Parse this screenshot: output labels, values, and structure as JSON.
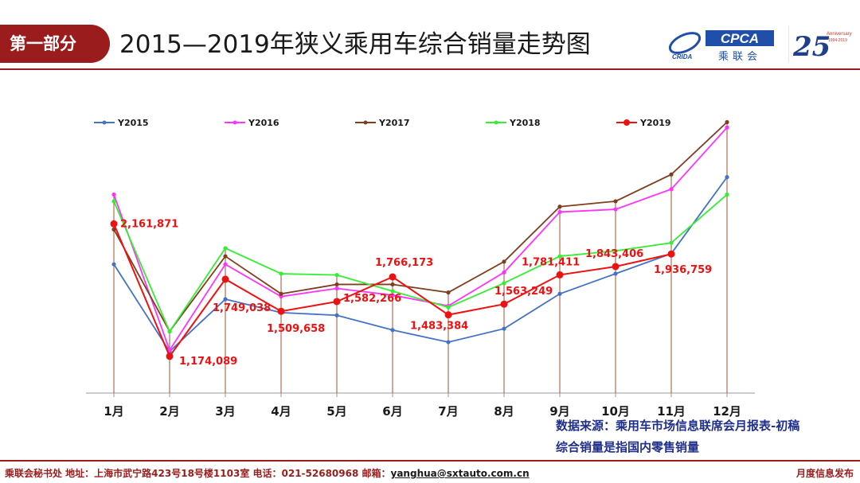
{
  "header": {
    "tab": "第一部分",
    "title": "2015—2019年狭义乘用车综合销量走势图",
    "logo_cpca_text": "CPCA",
    "logo_cpca_sub": "乘联会",
    "logo_cpca_tag": "CRIDA",
    "logo_anniv_number": "25",
    "logo_anniv_text": "Anniversary",
    "logo_anniv_years": "1994-2019"
  },
  "chart_data": {
    "type": "line",
    "categories": [
      "1月",
      "2月",
      "3月",
      "4月",
      "5月",
      "6月",
      "7月",
      "8月",
      "9月",
      "10月",
      "11月",
      "12月"
    ],
    "series": [
      {
        "name": "Y2015",
        "color": "#4472c4",
        "values": [
          1860000,
          1210000,
          1600000,
          1500000,
          1480000,
          1370000,
          1280000,
          1380000,
          1640000,
          1790000,
          1940000,
          2510000
        ]
      },
      {
        "name": "Y2016",
        "color": "#ff33ff",
        "values": [
          2380000,
          1220000,
          1860000,
          1620000,
          1680000,
          1630000,
          1550000,
          1800000,
          2250000,
          2270000,
          2420000,
          2880000
        ]
      },
      {
        "name": "Y2017",
        "color": "#7f3f1f",
        "values": [
          2120000,
          1360000,
          1920000,
          1640000,
          1710000,
          1710000,
          1650000,
          1880000,
          2290000,
          2330000,
          2530000,
          2920000
        ]
      },
      {
        "name": "Y2018",
        "color": "#33ee33",
        "values": [
          2330000,
          1360000,
          1980000,
          1790000,
          1780000,
          1660000,
          1540000,
          1720000,
          1920000,
          1960000,
          2020000,
          2380000
        ]
      },
      {
        "name": "Y2019",
        "color": "#ee1111",
        "values": [
          2161871,
          1174089,
          1749038,
          1509658,
          1582266,
          1766173,
          1483384,
          1563249,
          1781411,
          1843406,
          1936759,
          null
        ]
      }
    ],
    "data_labels": {
      "series": "Y2019",
      "texts": [
        "2,161,871",
        "1,174,089",
        "1,749,038",
        "1,509,658",
        "1,582,266",
        "1,766,173",
        "1,483,384",
        "1,563,249",
        "1,781,411",
        "1,843,406",
        "1,936,759"
      ]
    },
    "ylim": [
      900000,
      3000000
    ],
    "legend_position": "top",
    "grid": false,
    "drop_lines": true,
    "label_color": "#ee1111"
  },
  "notes": {
    "line1": "数据来源：乘用车市场信息联席会月报表-初稿",
    "line2": "综合销量是指国内零售销量"
  },
  "footer": {
    "left": "乘联会秘书处   地址：上海市武宁路423号18号楼1103室   电话：021-52680968   邮箱：",
    "email": "yanghua@sxtauto.com.cn",
    "right": "月度信息发布"
  }
}
